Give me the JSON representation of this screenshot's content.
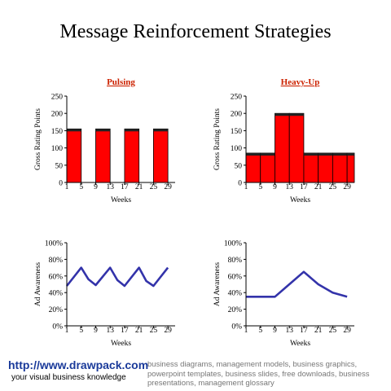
{
  "page": {
    "title": "Message Reinforcement Strategies",
    "footer": {
      "url": "http://www.drawpack.com",
      "tagline": "your visual business knowledge",
      "keywords": "business diagrams, management models, business graphics, powerpoint templates, business slides, free downloads, business presentations, management glossary"
    }
  },
  "colors": {
    "bar": "#ff0000",
    "line": "#3333aa",
    "heading": "#cc2200"
  },
  "chart_data": [
    {
      "type": "bar",
      "title": "Pulsing",
      "xlabel": "Weeks",
      "ylabel": "Gross Rating Points",
      "xlim": [
        1,
        31
      ],
      "ylim": [
        0,
        250
      ],
      "xticks": [
        "1",
        "5",
        "9",
        "13",
        "17",
        "21",
        "25",
        "29"
      ],
      "yticks": [
        "0",
        "50",
        "100",
        "150",
        "200",
        "250"
      ],
      "bars": [
        {
          "x0": 1,
          "x1": 5,
          "value": 155
        },
        {
          "x0": 9,
          "x1": 13,
          "value": 155
        },
        {
          "x0": 17,
          "x1": 21,
          "value": 155
        },
        {
          "x0": 25,
          "x1": 29,
          "value": 155
        }
      ]
    },
    {
      "type": "bar",
      "title": "Heavy-Up",
      "xlabel": "Weeks",
      "ylabel": "Gross Rating Points",
      "xlim": [
        1,
        31
      ],
      "ylim": [
        0,
        250
      ],
      "xticks": [
        "1",
        "5",
        "9",
        "13",
        "17",
        "21",
        "25",
        "29"
      ],
      "yticks": [
        "0",
        "50",
        "100",
        "150",
        "200",
        "250"
      ],
      "bars": [
        {
          "x0": 1,
          "x1": 5,
          "value": 85
        },
        {
          "x0": 5,
          "x1": 9,
          "value": 85
        },
        {
          "x0": 9,
          "x1": 13,
          "value": 200
        },
        {
          "x0": 13,
          "x1": 17,
          "value": 200
        },
        {
          "x0": 17,
          "x1": 21,
          "value": 85
        },
        {
          "x0": 21,
          "x1": 25,
          "value": 85
        },
        {
          "x0": 25,
          "x1": 29,
          "value": 85
        },
        {
          "x0": 29,
          "x1": 31,
          "value": 85
        }
      ]
    },
    {
      "type": "line",
      "xlabel": "Weeks",
      "ylabel": "Ad Awareness",
      "xlim": [
        1,
        31
      ],
      "ylim": [
        0,
        100
      ],
      "xticks": [
        "1",
        "5",
        "9",
        "13",
        "17",
        "21",
        "25",
        "29"
      ],
      "yticks": [
        "0%",
        "20%",
        "40%",
        "60%",
        "80%",
        "100%"
      ],
      "x": [
        1,
        5,
        7,
        9,
        13,
        15,
        17,
        21,
        23,
        25,
        29
      ],
      "y": [
        48,
        70,
        56,
        49,
        70,
        55,
        48,
        70,
        54,
        48,
        70
      ]
    },
    {
      "type": "line",
      "xlabel": "Weeks",
      "ylabel": "Ad Awareness",
      "xlim": [
        1,
        31
      ],
      "ylim": [
        0,
        100
      ],
      "xticks": [
        "1",
        "5",
        "9",
        "13",
        "17",
        "21",
        "25",
        "29"
      ],
      "yticks": [
        "0%",
        "20%",
        "40%",
        "60%",
        "80%",
        "100%"
      ],
      "x": [
        1,
        9,
        13,
        17,
        21,
        25,
        29
      ],
      "y": [
        35,
        35,
        50,
        65,
        50,
        40,
        35
      ]
    }
  ]
}
